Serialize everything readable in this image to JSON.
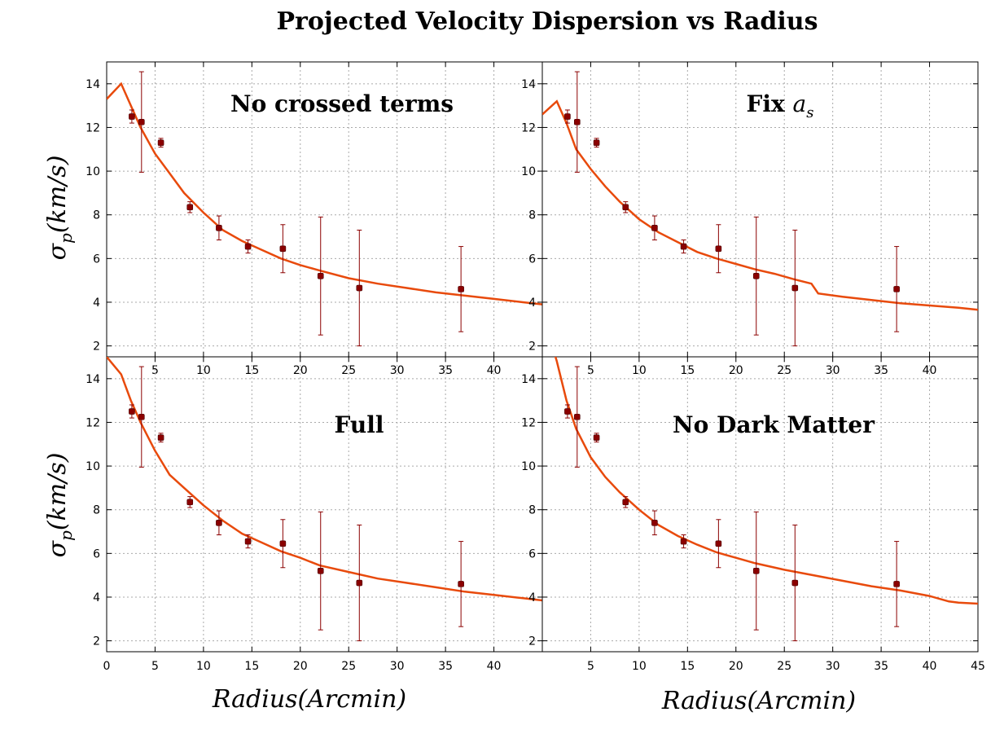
{
  "figure": {
    "title": "Projected Velocity Dispersion vs Radius",
    "ylabel": "σp(km/s)",
    "xlabel": "Radius(Arcmin)"
  },
  "chart_data": [
    {
      "type": "line",
      "panel": "top-left",
      "title": "No crossed terms",
      "xlabel": "",
      "ylabel": "σp(km/s)",
      "xlim": [
        0,
        45
      ],
      "ylim": [
        1.5,
        15
      ],
      "grid": true,
      "xticks": [
        "5",
        "10",
        "15",
        "20",
        "25",
        "30",
        "35",
        "40"
      ],
      "yticks": [
        "2",
        "4",
        "6",
        "8",
        "10",
        "12",
        "14"
      ],
      "observations": {
        "x": [
          2.6,
          3.6,
          5.6,
          8.6,
          11.6,
          14.6,
          18.2,
          22.1,
          26.1,
          36.6
        ],
        "y": [
          12.5,
          12.25,
          11.3,
          8.35,
          7.4,
          6.55,
          6.45,
          5.2,
          4.65,
          4.6
        ],
        "yerr": [
          0.3,
          2.3,
          0.2,
          0.25,
          0.55,
          0.3,
          1.1,
          2.7,
          2.65,
          1.95
        ]
      },
      "model": {
        "x": [
          0,
          1.5,
          2.5,
          3.5,
          5,
          6.5,
          8,
          10,
          12,
          14,
          16,
          18,
          20,
          22,
          25,
          28,
          31,
          34,
          37,
          40,
          43,
          45
        ],
        "y": [
          13.3,
          14.0,
          13.0,
          12.0,
          10.8,
          9.9,
          9.0,
          8.1,
          7.3,
          6.8,
          6.4,
          6.0,
          5.7,
          5.45,
          5.1,
          4.85,
          4.65,
          4.45,
          4.3,
          4.15,
          4.0,
          3.9
        ]
      }
    },
    {
      "type": "line",
      "panel": "top-right",
      "title": "Fix a_s",
      "title_text": "Fix",
      "title_math": "a",
      "title_sub": "s",
      "xlabel": "",
      "ylabel": "",
      "xlim": [
        0,
        45
      ],
      "ylim": [
        1.5,
        15
      ],
      "grid": true,
      "xticks": [
        "5",
        "10",
        "15",
        "20",
        "25",
        "30",
        "35",
        "40"
      ],
      "yticks": [
        "2",
        "4",
        "6",
        "8",
        "10",
        "12",
        "14"
      ],
      "observations": {
        "x": [
          2.6,
          3.6,
          5.6,
          8.6,
          11.6,
          14.6,
          18.2,
          22.1,
          26.1,
          36.6
        ],
        "y": [
          12.5,
          12.25,
          11.3,
          8.35,
          7.4,
          6.55,
          6.45,
          5.2,
          4.65,
          4.6
        ],
        "yerr": [
          0.3,
          2.3,
          0.2,
          0.25,
          0.55,
          0.3,
          1.1,
          2.7,
          2.65,
          1.95
        ]
      },
      "model": {
        "x": [
          0,
          1.5,
          2.5,
          3.5,
          5,
          6.5,
          8,
          10,
          12,
          14,
          16,
          18,
          20,
          22,
          24,
          26,
          27.8,
          28.5,
          31,
          34,
          37,
          40,
          43,
          45
        ],
        "y": [
          12.6,
          13.2,
          12.2,
          11.0,
          10.1,
          9.3,
          8.6,
          7.8,
          7.2,
          6.75,
          6.3,
          6.0,
          5.75,
          5.5,
          5.3,
          5.05,
          4.85,
          4.4,
          4.25,
          4.1,
          3.95,
          3.85,
          3.75,
          3.65
        ]
      }
    },
    {
      "type": "line",
      "panel": "bottom-left",
      "title": "Full",
      "xlabel": "Radius(Arcmin)",
      "ylabel": "σp(km/s)",
      "xlim": [
        0,
        45
      ],
      "ylim": [
        1.5,
        15
      ],
      "grid": true,
      "xticks": [
        "0",
        "5",
        "10",
        "15",
        "20",
        "25",
        "30",
        "35",
        "40"
      ],
      "yticks": [
        "2",
        "4",
        "6",
        "8",
        "10",
        "12",
        "14"
      ],
      "observations": {
        "x": [
          2.6,
          3.6,
          5.6,
          8.6,
          11.6,
          14.6,
          18.2,
          22.1,
          26.1,
          36.6
        ],
        "y": [
          12.5,
          12.25,
          11.3,
          8.35,
          7.4,
          6.55,
          6.45,
          5.2,
          4.65,
          4.6
        ],
        "yerr": [
          0.3,
          2.3,
          0.2,
          0.25,
          0.55,
          0.3,
          1.1,
          2.7,
          2.65,
          1.95
        ]
      },
      "model": {
        "x": [
          0,
          1.5,
          2.5,
          3.5,
          5,
          6.5,
          8,
          10,
          12,
          14,
          16,
          18,
          20,
          22,
          25,
          28,
          31,
          34,
          37,
          40,
          43,
          45
        ],
        "y": [
          15.0,
          14.2,
          13.0,
          12.0,
          10.7,
          9.6,
          9.0,
          8.2,
          7.5,
          6.9,
          6.5,
          6.1,
          5.8,
          5.45,
          5.15,
          4.85,
          4.65,
          4.45,
          4.25,
          4.1,
          3.95,
          3.85
        ]
      }
    },
    {
      "type": "line",
      "panel": "bottom-right",
      "title": "No Dark Matter",
      "xlabel": "Radius(Arcmin)",
      "ylabel": "",
      "xlim": [
        0,
        45
      ],
      "ylim": [
        1.5,
        15
      ],
      "grid": true,
      "xticks": [
        "5",
        "10",
        "15",
        "20",
        "25",
        "30",
        "35",
        "40",
        "45"
      ],
      "yticks": [
        "2",
        "4",
        "6",
        "8",
        "10",
        "12",
        "14"
      ],
      "observations": {
        "x": [
          2.6,
          3.6,
          5.6,
          8.6,
          11.6,
          14.6,
          18.2,
          22.1,
          26.1,
          36.6
        ],
        "y": [
          12.5,
          12.25,
          11.3,
          8.35,
          7.4,
          6.55,
          6.45,
          5.2,
          4.65,
          4.6
        ],
        "yerr": [
          0.3,
          2.3,
          0.2,
          0.25,
          0.55,
          0.3,
          1.1,
          2.7,
          2.65,
          1.95
        ]
      },
      "model": {
        "x": [
          0,
          1.5,
          2.5,
          3.5,
          5,
          6.5,
          8,
          10,
          12,
          14,
          16,
          18,
          20,
          22,
          25,
          28,
          31,
          34,
          37,
          40,
          42,
          43,
          45
        ],
        "y": [
          17.0,
          14.8,
          13.0,
          11.7,
          10.4,
          9.5,
          8.8,
          8.0,
          7.3,
          6.8,
          6.4,
          6.05,
          5.8,
          5.55,
          5.25,
          5.0,
          4.75,
          4.5,
          4.3,
          4.05,
          3.8,
          3.75,
          3.7
        ]
      }
    }
  ]
}
